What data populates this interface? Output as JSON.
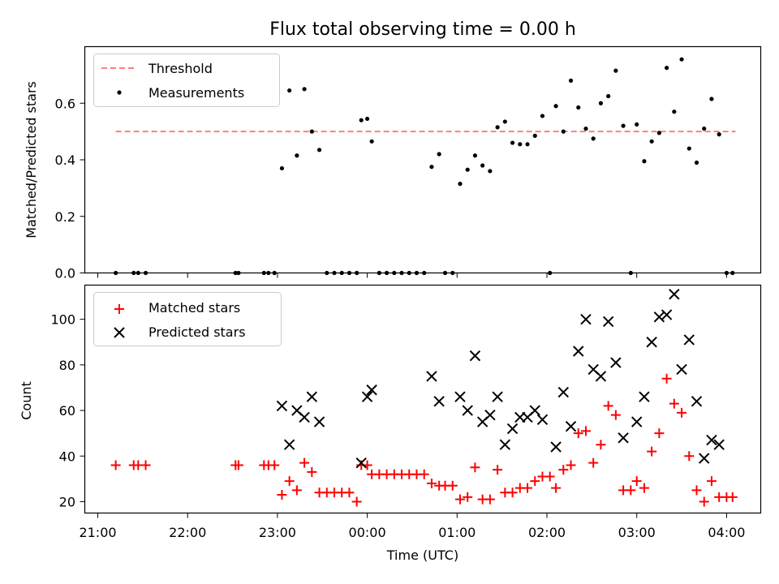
{
  "chart_data": [
    {
      "type": "scatter",
      "title": "Flux total observing time = 0.00 h",
      "xlabel": "",
      "ylabel": "Matched/Predicted stars",
      "ylim": [
        0,
        0.8
      ],
      "yticks": [
        "0.0",
        "0.2",
        "0.4",
        "0.6"
      ],
      "ytick_values": [
        0,
        0.2,
        0.4,
        0.6
      ],
      "legend": {
        "position": "top-left",
        "entries": [
          "Threshold",
          "Measurements"
        ]
      },
      "series": [
        {
          "name": "Threshold",
          "kind": "dashed-line",
          "color": "#ff7f7f",
          "x": [
            "21:12",
            "04:06"
          ],
          "y": [
            0.5,
            0.5
          ]
        },
        {
          "name": "Measurements",
          "kind": "dot",
          "color": "#000000",
          "points": [
            [
              "21:12",
              0.0
            ],
            [
              "21:24",
              0.0
            ],
            [
              "21:27",
              0.0
            ],
            [
              "21:32",
              0.0
            ],
            [
              "22:32",
              0.0
            ],
            [
              "22:34",
              0.0
            ],
            [
              "22:51",
              0.0
            ],
            [
              "22:54",
              0.0
            ],
            [
              "22:58",
              0.0
            ],
            [
              "23:03",
              0.37
            ],
            [
              "23:08",
              0.645
            ],
            [
              "23:13",
              0.415
            ],
            [
              "23:18",
              0.65
            ],
            [
              "23:23",
              0.5
            ],
            [
              "23:28",
              0.435
            ],
            [
              "23:33",
              0.0
            ],
            [
              "23:38",
              0.0
            ],
            [
              "23:43",
              0.0
            ],
            [
              "23:48",
              0.0
            ],
            [
              "23:53",
              0.0
            ],
            [
              "23:56",
              0.54
            ],
            [
              "00:00",
              0.545
            ],
            [
              "00:03",
              0.465
            ],
            [
              "00:08",
              0.0
            ],
            [
              "00:13",
              0.0
            ],
            [
              "00:18",
              0.0
            ],
            [
              "00:23",
              0.0
            ],
            [
              "00:28",
              0.0
            ],
            [
              "00:33",
              0.0
            ],
            [
              "00:38",
              0.0
            ],
            [
              "00:43",
              0.375
            ],
            [
              "00:48",
              0.42
            ],
            [
              "00:52",
              0.0
            ],
            [
              "00:57",
              0.0
            ],
            [
              "01:02",
              0.315
            ],
            [
              "01:07",
              0.365
            ],
            [
              "01:12",
              0.415
            ],
            [
              "01:17",
              0.38
            ],
            [
              "01:22",
              0.36
            ],
            [
              "01:27",
              0.515
            ],
            [
              "01:32",
              0.535
            ],
            [
              "01:37",
              0.46
            ],
            [
              "01:42",
              0.455
            ],
            [
              "01:47",
              0.455
            ],
            [
              "01:52",
              0.485
            ],
            [
              "01:57",
              0.555
            ],
            [
              "02:02",
              0.0
            ],
            [
              "02:06",
              0.59
            ],
            [
              "02:11",
              0.5
            ],
            [
              "02:16",
              0.68
            ],
            [
              "02:21",
              0.585
            ],
            [
              "02:26",
              0.51
            ],
            [
              "02:31",
              0.475
            ],
            [
              "02:36",
              0.6
            ],
            [
              "02:41",
              0.625
            ],
            [
              "02:46",
              0.715
            ],
            [
              "02:51",
              0.52
            ],
            [
              "02:56",
              0.0
            ],
            [
              "03:00",
              0.525
            ],
            [
              "03:05",
              0.395
            ],
            [
              "03:10",
              0.465
            ],
            [
              "03:15",
              0.495
            ],
            [
              "03:20",
              0.725
            ],
            [
              "03:25",
              0.57
            ],
            [
              "03:30",
              0.755
            ],
            [
              "03:35",
              0.44
            ],
            [
              "03:40",
              0.39
            ],
            [
              "03:45",
              0.51
            ],
            [
              "03:50",
              0.615
            ],
            [
              "03:55",
              0.49
            ],
            [
              "04:00",
              0.0
            ],
            [
              "04:04",
              0.0
            ]
          ]
        }
      ]
    },
    {
      "type": "scatter",
      "xlabel": "Time (UTC)",
      "ylabel": "Count",
      "ylim": [
        15,
        115
      ],
      "yticks": [
        "20",
        "40",
        "60",
        "80",
        "100"
      ],
      "ytick_values": [
        20,
        40,
        60,
        80,
        100
      ],
      "xticks": [
        "21:00",
        "22:00",
        "23:00",
        "00:00",
        "01:00",
        "02:00",
        "03:00",
        "04:00"
      ],
      "legend": {
        "position": "top-left",
        "entries": [
          "Matched stars",
          "Predicted stars"
        ]
      },
      "series": [
        {
          "name": "Matched stars",
          "kind": "plus",
          "color": "#ff0000",
          "points": [
            [
              "21:12",
              36
            ],
            [
              "21:24",
              36
            ],
            [
              "21:27",
              36
            ],
            [
              "21:32",
              36
            ],
            [
              "22:32",
              36
            ],
            [
              "22:34",
              36
            ],
            [
              "22:51",
              36
            ],
            [
              "22:54",
              36
            ],
            [
              "22:58",
              36
            ],
            [
              "23:03",
              23
            ],
            [
              "23:08",
              29
            ],
            [
              "23:13",
              25
            ],
            [
              "23:18",
              37
            ],
            [
              "23:23",
              33
            ],
            [
              "23:28",
              24
            ],
            [
              "23:33",
              24
            ],
            [
              "23:38",
              24
            ],
            [
              "23:43",
              24
            ],
            [
              "23:48",
              24
            ],
            [
              "23:53",
              20
            ],
            [
              "23:56",
              36
            ],
            [
              "00:00",
              36
            ],
            [
              "00:03",
              32
            ],
            [
              "00:08",
              32
            ],
            [
              "00:13",
              32
            ],
            [
              "00:18",
              32
            ],
            [
              "00:23",
              32
            ],
            [
              "00:28",
              32
            ],
            [
              "00:33",
              32
            ],
            [
              "00:38",
              32
            ],
            [
              "00:43",
              28
            ],
            [
              "00:48",
              27
            ],
            [
              "00:52",
              27
            ],
            [
              "00:57",
              27
            ],
            [
              "01:02",
              21
            ],
            [
              "01:07",
              22
            ],
            [
              "01:12",
              35
            ],
            [
              "01:17",
              21
            ],
            [
              "01:22",
              21
            ],
            [
              "01:27",
              34
            ],
            [
              "01:32",
              24
            ],
            [
              "01:37",
              24
            ],
            [
              "01:42",
              26
            ],
            [
              "01:47",
              26
            ],
            [
              "01:52",
              29
            ],
            [
              "01:57",
              31
            ],
            [
              "02:02",
              31
            ],
            [
              "02:06",
              26
            ],
            [
              "02:11",
              34
            ],
            [
              "02:16",
              36
            ],
            [
              "02:21",
              50
            ],
            [
              "02:26",
              51
            ],
            [
              "02:31",
              37
            ],
            [
              "02:36",
              45
            ],
            [
              "02:41",
              62
            ],
            [
              "02:46",
              58
            ],
            [
              "02:51",
              25
            ],
            [
              "02:56",
              25
            ],
            [
              "03:00",
              29
            ],
            [
              "03:05",
              26
            ],
            [
              "03:10",
              42
            ],
            [
              "03:15",
              50
            ],
            [
              "03:20",
              74
            ],
            [
              "03:25",
              63
            ],
            [
              "03:30",
              59
            ],
            [
              "03:35",
              40
            ],
            [
              "03:40",
              25
            ],
            [
              "03:45",
              20
            ],
            [
              "03:50",
              29
            ],
            [
              "03:55",
              22
            ],
            [
              "04:00",
              22
            ],
            [
              "04:04",
              22
            ]
          ]
        },
        {
          "name": "Predicted stars",
          "kind": "x",
          "color": "#000000",
          "points": [
            [
              "23:03",
              62
            ],
            [
              "23:08",
              45
            ],
            [
              "23:13",
              60
            ],
            [
              "23:18",
              57
            ],
            [
              "23:23",
              66
            ],
            [
              "23:28",
              55
            ],
            [
              "23:56",
              37
            ],
            [
              "00:00",
              66
            ],
            [
              "00:03",
              69
            ],
            [
              "00:43",
              75
            ],
            [
              "00:48",
              64
            ],
            [
              "01:02",
              66
            ],
            [
              "01:07",
              60
            ],
            [
              "01:12",
              84
            ],
            [
              "01:17",
              55
            ],
            [
              "01:22",
              58
            ],
            [
              "01:27",
              66
            ],
            [
              "01:32",
              45
            ],
            [
              "01:37",
              52
            ],
            [
              "01:42",
              57
            ],
            [
              "01:47",
              57
            ],
            [
              "01:52",
              60
            ],
            [
              "01:57",
              56
            ],
            [
              "02:06",
              44
            ],
            [
              "02:11",
              68
            ],
            [
              "02:16",
              53
            ],
            [
              "02:21",
              86
            ],
            [
              "02:26",
              100
            ],
            [
              "02:31",
              78
            ],
            [
              "02:36",
              75
            ],
            [
              "02:41",
              99
            ],
            [
              "02:46",
              81
            ],
            [
              "02:51",
              48
            ],
            [
              "03:00",
              55
            ],
            [
              "03:05",
              66
            ],
            [
              "03:10",
              90
            ],
            [
              "03:15",
              101
            ],
            [
              "03:20",
              102
            ],
            [
              "03:25",
              111
            ],
            [
              "03:30",
              78
            ],
            [
              "03:35",
              91
            ],
            [
              "03:40",
              64
            ],
            [
              "03:45",
              39
            ],
            [
              "03:50",
              47
            ],
            [
              "03:55",
              45
            ]
          ]
        }
      ]
    }
  ]
}
